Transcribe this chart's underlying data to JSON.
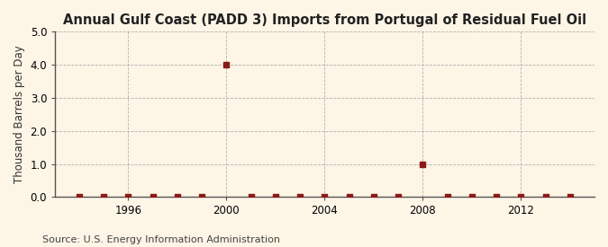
{
  "title": "Annual Gulf Coast (PADD 3) Imports from Portugal of Residual Fuel Oil",
  "ylabel": "Thousand Barrels per Day",
  "source": "Source: U.S. Energy Information Administration",
  "background_color": "#fdf5e6",
  "plot_bg_color": "#fdf5e6",
  "ylim": [
    0,
    5.0
  ],
  "yticks": [
    0.0,
    1.0,
    2.0,
    3.0,
    4.0,
    5.0
  ],
  "xlim": [
    1993,
    2015
  ],
  "xticks": [
    1996,
    2000,
    2004,
    2008,
    2012
  ],
  "data_points": [
    {
      "year": 1994,
      "value": 0
    },
    {
      "year": 1995,
      "value": 0
    },
    {
      "year": 1996,
      "value": 0
    },
    {
      "year": 1997,
      "value": 0
    },
    {
      "year": 1998,
      "value": 0
    },
    {
      "year": 1999,
      "value": 0
    },
    {
      "year": 2000,
      "value": 4.0
    },
    {
      "year": 2001,
      "value": 0
    },
    {
      "year": 2002,
      "value": 0
    },
    {
      "year": 2003,
      "value": 0
    },
    {
      "year": 2004,
      "value": 0
    },
    {
      "year": 2005,
      "value": 0
    },
    {
      "year": 2006,
      "value": 0
    },
    {
      "year": 2007,
      "value": 0
    },
    {
      "year": 2008,
      "value": 1.0
    },
    {
      "year": 2009,
      "value": 0
    },
    {
      "year": 2010,
      "value": 0
    },
    {
      "year": 2011,
      "value": 0
    },
    {
      "year": 2012,
      "value": 0
    },
    {
      "year": 2013,
      "value": 0
    },
    {
      "year": 2014,
      "value": 0
    }
  ],
  "marker_color": "#8b1a1a",
  "marker_size": 4,
  "grid_color": "#aaaaaa",
  "title_fontsize": 10.5,
  "label_fontsize": 8.5,
  "tick_fontsize": 8.5,
  "source_fontsize": 8
}
